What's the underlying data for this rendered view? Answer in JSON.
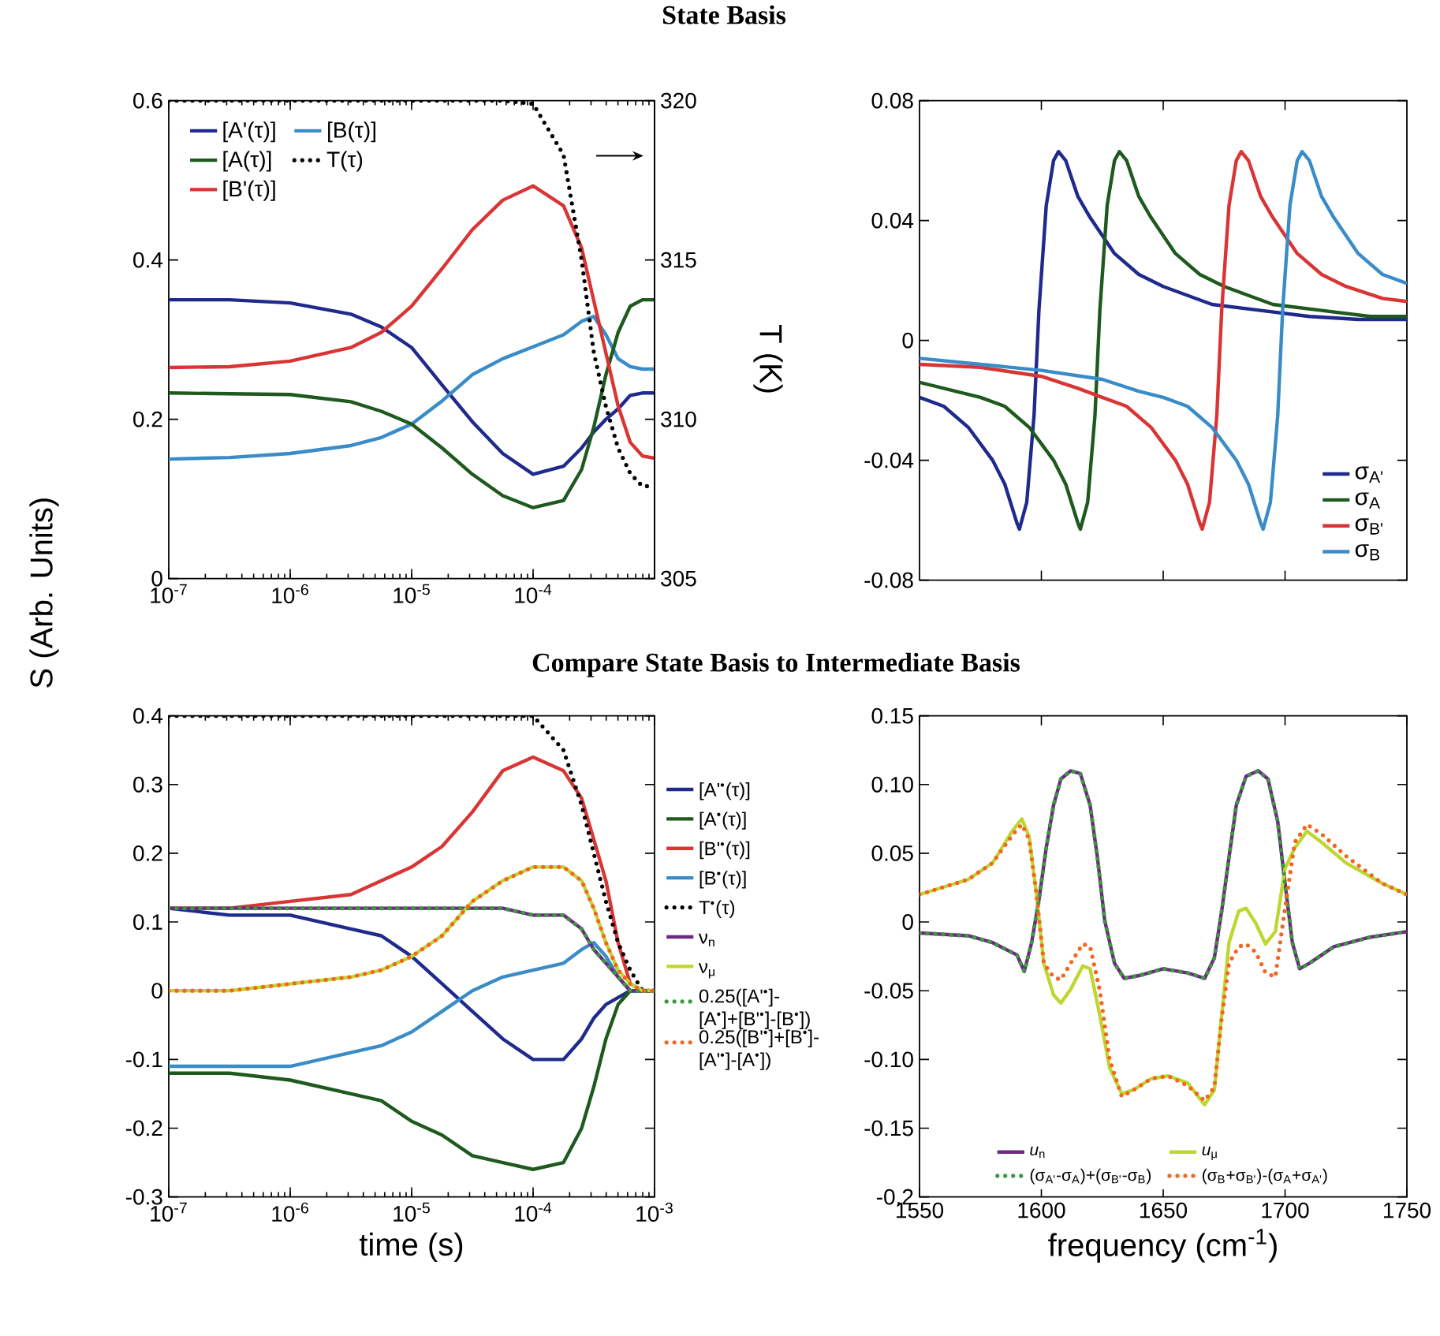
{
  "chart_data": [
    {
      "type": "line",
      "title": "State Basis",
      "ylabel": "S (Arb. Units)",
      "y2label": "T (K)",
      "log": "x",
      "xlim": [
        1e-07,
        0.001
      ],
      "ylim": [
        0,
        0.6
      ],
      "y2lim": [
        305,
        320
      ],
      "legend": "top left",
      "xticks": [
        {
          "value": 1e-07,
          "label": "10$^{-7}$"
        },
        {
          "value": 1e-06,
          "label": "10$^{-6}$"
        },
        {
          "value": 1e-05,
          "label": "10$^{-5}$"
        },
        {
          "value": 0.0001,
          "label": "10$^{-4}$"
        },
        {
          "value": 0.001,
          "label": null
        }
      ],
      "yticks": [
        0,
        0.2,
        0.4,
        0.6
      ],
      "y2ticks": [
        305,
        310,
        315,
        320
      ],
      "x": [
        1e-07,
        3.16e-07,
        1e-06,
        3.16e-06,
        5.62e-06,
        1e-05,
        1.78e-05,
        3.16e-05,
        5.62e-05,
        0.0001,
        0.000178,
        0.000251,
        0.000316,
        0.000398,
        0.000501,
        0.000631,
        0.000794,
        0.001
      ],
      "series": [
        {
          "name": "[A'(τ)]",
          "color": "#1f2a8c",
          "values": [
            0.35,
            0.35,
            0.346,
            0.332,
            0.316,
            0.29,
            0.243,
            0.197,
            0.157,
            0.131,
            0.141,
            0.164,
            0.184,
            0.2,
            0.213,
            0.23,
            0.233,
            0.233
          ]
        },
        {
          "name": "[B(τ)]",
          "color": "#3a8cc8",
          "values": [
            0.15,
            0.152,
            0.157,
            0.167,
            0.177,
            0.194,
            0.223,
            0.256,
            0.276,
            0.291,
            0.306,
            0.323,
            0.329,
            0.306,
            0.276,
            0.266,
            0.263,
            0.263
          ]
        },
        {
          "name": "[A(τ)]",
          "color": "#1e5a1e",
          "values": [
            0.233,
            0.232,
            0.231,
            0.222,
            0.21,
            0.194,
            0.164,
            0.131,
            0.104,
            0.089,
            0.098,
            0.137,
            0.19,
            0.256,
            0.309,
            0.342,
            0.35,
            0.35
          ]
        },
        {
          "name": "T(τ)",
          "color": "#000000",
          "line_style": "dotted",
          "axis": "y2",
          "values": [
            320,
            320,
            320,
            320,
            320,
            320,
            320,
            320,
            320,
            319.9,
            318.3,
            315.0,
            312.1,
            310.4,
            309.1,
            308.3,
            307.9,
            307.9
          ]
        },
        {
          "name": "[B'(τ)]",
          "color": "#d93535",
          "values": [
            0.265,
            0.266,
            0.273,
            0.29,
            0.309,
            0.342,
            0.389,
            0.438,
            0.475,
            0.493,
            0.468,
            0.415,
            0.349,
            0.283,
            0.217,
            0.171,
            0.154,
            0.151
          ]
        }
      ]
    },
    {
      "type": "line",
      "xlim": [
        1550,
        1750
      ],
      "ylim": [
        -0.08,
        0.08
      ],
      "tick_labels": "y",
      "legend": "bottom right",
      "xticks": [
        {
          "value": 1600,
          "label": null
        },
        {
          "value": 1650,
          "label": null
        },
        {
          "value": 1700,
          "label": null
        }
      ],
      "yticks": [
        -0.08,
        -0.04,
        0,
        0.04,
        0.08
      ],
      "series": [
        {
          "name": "σ$_{A'}$",
          "color": "#1f2a8c",
          "x": [
            1550,
            1560,
            1570,
            1580,
            1585,
            1590,
            1591,
            1594,
            1597,
            1599,
            1602,
            1605,
            1607,
            1610,
            1615,
            1620,
            1630,
            1640,
            1650,
            1670,
            1690,
            1710,
            1730,
            1750
          ],
          "values": [
            -0.019,
            -0.022,
            -0.029,
            -0.04,
            -0.048,
            -0.061,
            -0.063,
            -0.054,
            -0.025,
            0.01,
            0.045,
            0.06,
            0.063,
            0.06,
            0.048,
            0.041,
            0.029,
            0.022,
            0.018,
            0.012,
            0.01,
            0.008,
            0.007,
            0.007
          ]
        },
        {
          "name": "σ$_{A}$",
          "color": "#1e5a1e",
          "x": [
            1550,
            1575,
            1585,
            1595,
            1605,
            1610,
            1615,
            1616,
            1619,
            1622,
            1624,
            1627,
            1630,
            1632,
            1635,
            1640,
            1645,
            1655,
            1665,
            1675,
            1695,
            1715,
            1735,
            1750
          ],
          "values": [
            -0.014,
            -0.019,
            -0.022,
            -0.029,
            -0.04,
            -0.048,
            -0.061,
            -0.063,
            -0.054,
            -0.025,
            0.01,
            0.045,
            0.06,
            0.063,
            0.06,
            0.048,
            0.041,
            0.029,
            0.022,
            0.018,
            0.012,
            0.01,
            0.008,
            0.008
          ]
        },
        {
          "name": "σ$_{B'}$",
          "color": "#d93535",
          "x": [
            1550,
            1575,
            1600,
            1615,
            1625,
            1635,
            1645,
            1655,
            1660,
            1665,
            1666,
            1669,
            1672,
            1674,
            1677,
            1680,
            1682,
            1685,
            1690,
            1695,
            1705,
            1715,
            1725,
            1740,
            1750
          ],
          "values": [
            -0.008,
            -0.009,
            -0.012,
            -0.016,
            -0.019,
            -0.022,
            -0.029,
            -0.04,
            -0.048,
            -0.061,
            -0.063,
            -0.054,
            -0.025,
            0.01,
            0.045,
            0.06,
            0.063,
            0.06,
            0.048,
            0.041,
            0.029,
            0.022,
            0.018,
            0.014,
            0.013
          ]
        },
        {
          "name": "σ$_{B}$",
          "color": "#3a8cc8",
          "x": [
            1550,
            1575,
            1600,
            1625,
            1640,
            1650,
            1660,
            1670,
            1680,
            1685,
            1690,
            1691,
            1694,
            1697,
            1699,
            1702,
            1705,
            1707,
            1710,
            1715,
            1720,
            1730,
            1740,
            1750
          ],
          "values": [
            -0.006,
            -0.008,
            -0.01,
            -0.013,
            -0.017,
            -0.019,
            -0.022,
            -0.029,
            -0.04,
            -0.048,
            -0.061,
            -0.063,
            -0.054,
            -0.025,
            0.01,
            0.045,
            0.06,
            0.063,
            0.06,
            0.048,
            0.041,
            0.029,
            0.022,
            0.019
          ]
        }
      ]
    },
    {
      "type": "line",
      "title": "Compare State Basis to Intermediate Basis",
      "xlabel": "time (s)",
      "log": "x",
      "xlim": [
        1e-07,
        0.001
      ],
      "ylim": [
        -0.3,
        0.4
      ],
      "legend": "right",
      "xticks": [
        {
          "value": 1e-07,
          "label": "10$^{-7}$"
        },
        {
          "value": 1e-06,
          "label": "10$^{-6}$"
        },
        {
          "value": 1e-05,
          "label": "10$^{-5}$"
        },
        {
          "value": 0.0001,
          "label": "10$^{-4}$"
        },
        {
          "value": 0.001,
          "label": "10$^{-3}$"
        }
      ],
      "yticks": [
        -0.3,
        -0.2,
        -0.1,
        0,
        0.1,
        0.2,
        0.3,
        0.4
      ],
      "x": [
        1e-07,
        3.16e-07,
        1e-06,
        3.16e-06,
        5.62e-06,
        1e-05,
        1.78e-05,
        3.16e-05,
        5.62e-05,
        0.0001,
        0.000178,
        0.000251,
        0.000316,
        0.000398,
        0.000501,
        0.000631,
        0.000794,
        0.001
      ],
      "series": [
        {
          "name": "[A'$^{•}$(τ)]",
          "color": "#1f2a8c",
          "values": [
            0.12,
            0.11,
            0.11,
            0.09,
            0.08,
            0.05,
            0.01,
            -0.03,
            -0.07,
            -0.1,
            -0.1,
            -0.07,
            -0.04,
            -0.02,
            -0.01,
            0,
            0,
            0
          ]
        },
        {
          "name": "[A$^{•}$(τ)]",
          "color": "#1e5a1e",
          "values": [
            -0.12,
            -0.12,
            -0.13,
            -0.15,
            -0.16,
            -0.19,
            -0.21,
            -0.24,
            -0.25,
            -0.26,
            -0.25,
            -0.2,
            -0.14,
            -0.07,
            -0.02,
            0,
            0,
            0
          ]
        },
        {
          "name": "[B'$^{•}$(τ)]",
          "color": "#d93535",
          "values": [
            0.12,
            0.12,
            0.13,
            0.14,
            0.16,
            0.18,
            0.21,
            0.26,
            0.32,
            0.34,
            0.32,
            0.28,
            0.22,
            0.16,
            0.07,
            0.01,
            0,
            0
          ]
        },
        {
          "name": "[B$^{•}$(τ)]",
          "color": "#3a8cc8",
          "values": [
            -0.11,
            -0.11,
            -0.11,
            -0.09,
            -0.08,
            -0.06,
            -0.03,
            0,
            0.02,
            0.03,
            0.04,
            0.06,
            0.07,
            0.05,
            0.02,
            0,
            0,
            0
          ]
        },
        {
          "name": "T$^{•}$(τ)",
          "color": "#000000",
          "line_style": "dotted",
          "values": [
            0.4,
            0.4,
            0.4,
            0.4,
            0.4,
            0.4,
            0.4,
            0.4,
            0.4,
            0.4,
            0.35,
            0.27,
            0.2,
            0.13,
            0.07,
            0.03,
            0,
            0
          ]
        },
        {
          "name": "ν$_{n}$",
          "color": "#6a2c80",
          "values": [
            0.12,
            0.12,
            0.12,
            0.12,
            0.12,
            0.12,
            0.12,
            0.12,
            0.12,
            0.11,
            0.11,
            0.09,
            0.06,
            0.04,
            0.02,
            0,
            0,
            0
          ]
        },
        {
          "name": "ν$_{μ}$",
          "color": "#c0d630",
          "values": [
            0,
            0,
            0.01,
            0.02,
            0.03,
            0.05,
            0.08,
            0.13,
            0.16,
            0.18,
            0.18,
            0.16,
            0.12,
            0.07,
            0.03,
            0.01,
            0,
            0
          ]
        },
        {
          "name": "0.25([A'$^{•}$]-[A$^{•}$]+[B'$^{•}$]-[B$^{•}$])",
          "color": "#3c9a3c",
          "line_style": "dotted",
          "values": [
            0.12,
            0.12,
            0.12,
            0.12,
            0.12,
            0.12,
            0.12,
            0.12,
            0.12,
            0.11,
            0.11,
            0.09,
            0.06,
            0.04,
            0.02,
            0,
            0,
            0
          ]
        },
        {
          "name": "0.25([B'$^{•}$]+[B$^{•}$]-[A'$^{•}$]-[A$^{•}$])",
          "color": "#f26522",
          "line_style": "dotted",
          "values": [
            0,
            0,
            0.01,
            0.02,
            0.03,
            0.05,
            0.08,
            0.13,
            0.16,
            0.18,
            0.18,
            0.16,
            0.12,
            0.07,
            0.03,
            0.01,
            0,
            0
          ]
        }
      ]
    },
    {
      "type": "line",
      "xlabel": "frequency (cm$^{-1}$)",
      "xlim": [
        1550,
        1750
      ],
      "ylim": [
        -0.2,
        0.15
      ],
      "legend": "bottom",
      "xticks": [
        1550,
        1600,
        1650,
        1700,
        1750
      ],
      "yticks": [
        -0.2,
        -0.15,
        {
          "value": -0.1,
          "label": "-0.10"
        },
        -0.05,
        0,
        0.05,
        {
          "value": 0.1,
          "label": "0.10"
        },
        0.15
      ],
      "series": [
        {
          "name": "*u*$_{n}$",
          "color": "#6a2c80",
          "x": [
            1550,
            1570,
            1580,
            1590,
            1593,
            1596,
            1599,
            1602,
            1605,
            1608,
            1612,
            1616,
            1620,
            1623,
            1626,
            1630,
            1634,
            1640,
            1650,
            1660,
            1667,
            1671,
            1674,
            1677,
            1680,
            1684,
            1689,
            1693,
            1697,
            1700,
            1703,
            1706,
            1710,
            1720,
            1735,
            1750
          ],
          "values": [
            -0.008,
            -0.01,
            -0.015,
            -0.024,
            -0.036,
            -0.015,
            0.016,
            0.054,
            0.085,
            0.104,
            0.11,
            0.108,
            0.085,
            0.047,
            0.001,
            -0.03,
            -0.041,
            -0.039,
            -0.034,
            -0.037,
            -0.041,
            -0.026,
            0.008,
            0.047,
            0.085,
            0.106,
            0.11,
            0.104,
            0.073,
            0.028,
            -0.015,
            -0.034,
            -0.03,
            -0.018,
            -0.011,
            -0.007
          ]
        },
        {
          "name": "*u*$_{μ}$",
          "color": "#c0d630",
          "x": [
            1550,
            1570,
            1580,
            1588,
            1592,
            1595,
            1598,
            1601,
            1605,
            1608,
            1612,
            1617,
            1620,
            1624,
            1628,
            1633,
            1638,
            1645,
            1652,
            1660,
            1667,
            1671,
            1674,
            1677,
            1681,
            1684,
            1688,
            1692,
            1696,
            1700,
            1704,
            1709,
            1715,
            1725,
            1740,
            1750
          ],
          "values": [
            0.02,
            0.031,
            0.043,
            0.066,
            0.075,
            0.062,
            0.02,
            -0.03,
            -0.053,
            -0.059,
            -0.049,
            -0.032,
            -0.034,
            -0.068,
            -0.106,
            -0.125,
            -0.122,
            -0.114,
            -0.112,
            -0.117,
            -0.133,
            -0.122,
            -0.068,
            -0.015,
            0.008,
            0.01,
            -0.001,
            -0.016,
            -0.007,
            0.039,
            0.054,
            0.066,
            0.058,
            0.043,
            0.028,
            0.02
          ]
        },
        {
          "name": "(σ$_{A'}$-σ$_{A}$)+(σ$_{B'}$-σ$_{B}$)",
          "color": "#3c9a3c",
          "line_style": "dotted",
          "x": [
            1550,
            1570,
            1580,
            1590,
            1593,
            1596,
            1599,
            1602,
            1605,
            1608,
            1612,
            1616,
            1620,
            1623,
            1626,
            1630,
            1634,
            1640,
            1650,
            1660,
            1667,
            1671,
            1674,
            1677,
            1680,
            1684,
            1689,
            1693,
            1697,
            1700,
            1703,
            1706,
            1710,
            1720,
            1735,
            1750
          ],
          "values": [
            -0.008,
            -0.01,
            -0.015,
            -0.024,
            -0.036,
            -0.015,
            0.016,
            0.054,
            0.085,
            0.104,
            0.11,
            0.108,
            0.085,
            0.047,
            0.001,
            -0.03,
            -0.041,
            -0.039,
            -0.034,
            -0.037,
            -0.041,
            -0.026,
            0.008,
            0.047,
            0.085,
            0.106,
            0.11,
            0.104,
            0.073,
            0.028,
            -0.015,
            -0.034,
            -0.03,
            -0.018,
            -0.011,
            -0.007
          ]
        },
        {
          "name": "(σ$_{B}$+σ$_{B'}$)-(σ$_{A}$+σ$_{A'}$)",
          "color": "#f26522",
          "line_style": "dotted",
          "x": [
            1550,
            1570,
            1580,
            1588,
            1592,
            1595,
            1598,
            1601,
            1605,
            1608,
            1612,
            1617,
            1620,
            1624,
            1628,
            1633,
            1638,
            1645,
            1652,
            1660,
            1667,
            1671,
            1674,
            1677,
            1681,
            1684,
            1688,
            1692,
            1696,
            1700,
            1704,
            1709,
            1715,
            1725,
            1740,
            1750
          ],
          "values": [
            0.02,
            0.031,
            0.043,
            0.063,
            0.071,
            0.06,
            0.02,
            -0.03,
            -0.04,
            -0.042,
            -0.03,
            -0.016,
            -0.018,
            -0.05,
            -0.1,
            -0.127,
            -0.122,
            -0.114,
            -0.112,
            -0.119,
            -0.13,
            -0.12,
            -0.07,
            -0.03,
            -0.018,
            -0.016,
            -0.022,
            -0.037,
            -0.04,
            0.01,
            0.058,
            0.071,
            0.064,
            0.048,
            0.028,
            0.02
          ]
        }
      ]
    }
  ]
}
